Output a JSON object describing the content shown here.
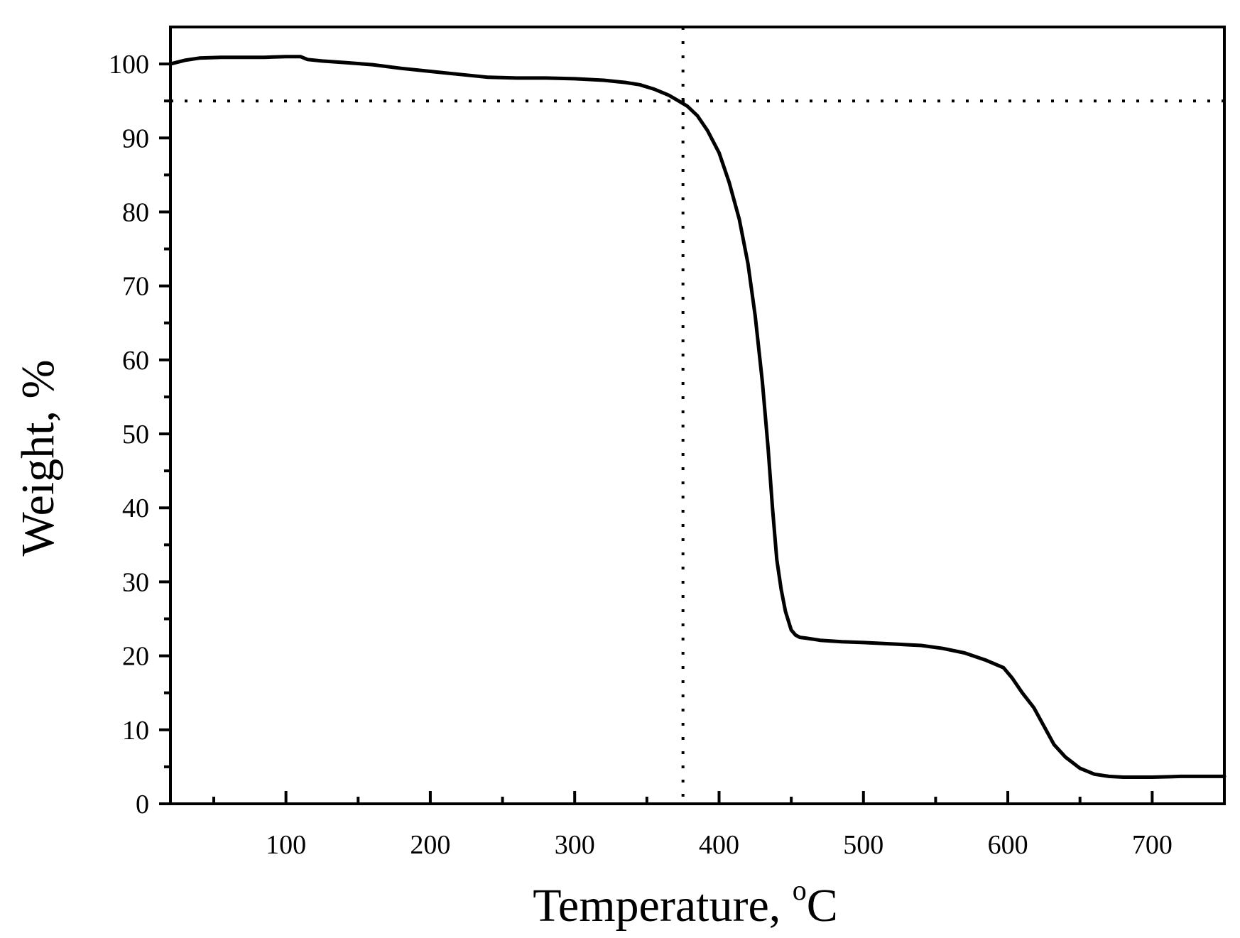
{
  "chart_data": {
    "type": "line",
    "title": "",
    "xlabel_main": "Temperature, ",
    "xlabel_sup": "o",
    "xlabel_unit": "C",
    "ylabel": "Weight, %",
    "xlim": [
      20,
      750
    ],
    "ylim": [
      0,
      105
    ],
    "x_ticks": [
      100,
      200,
      300,
      400,
      500,
      600,
      700
    ],
    "x_minor_ticks": [
      50,
      150,
      250,
      350,
      450,
      550,
      650,
      750
    ],
    "y_ticks": [
      0,
      10,
      20,
      30,
      40,
      50,
      60,
      70,
      80,
      90,
      100
    ],
    "y_minor_ticks": [
      5,
      15,
      25,
      35,
      45,
      55,
      65,
      75,
      85,
      95
    ],
    "grid": false,
    "legend": "none",
    "line_color": "#000000",
    "reference_lines": [
      {
        "orientation": "vertical",
        "x": 375,
        "style": "dotted"
      },
      {
        "orientation": "horizontal",
        "y": 95,
        "style": "dotted"
      }
    ],
    "series": [
      {
        "x": [
          20,
          30,
          40,
          55,
          70,
          85,
          100,
          110,
          115,
          125,
          140,
          160,
          180,
          200,
          220,
          240,
          260,
          280,
          300,
          320,
          335,
          345,
          355,
          365,
          372,
          378,
          385,
          392,
          400,
          407,
          414,
          420,
          425,
          430,
          434,
          437,
          440,
          443,
          446,
          450,
          453,
          456,
          460,
          470,
          485,
          500,
          520,
          540,
          555,
          570,
          585,
          597,
          603,
          610,
          618,
          625,
          632,
          640,
          650,
          660,
          670,
          680,
          700,
          720,
          750
        ],
        "y": [
          100.0,
          100.5,
          100.8,
          100.9,
          100.9,
          100.9,
          101.0,
          101.0,
          100.6,
          100.4,
          100.2,
          99.9,
          99.4,
          99.0,
          98.6,
          98.2,
          98.1,
          98.1,
          98.0,
          97.8,
          97.5,
          97.2,
          96.6,
          95.8,
          95.0,
          94.3,
          93.0,
          91.0,
          88.0,
          84.0,
          79.0,
          73.0,
          66.0,
          57.0,
          48.0,
          40.0,
          33.0,
          29.0,
          26.0,
          23.5,
          22.8,
          22.5,
          22.4,
          22.1,
          21.9,
          21.8,
          21.6,
          21.4,
          21.0,
          20.4,
          19.4,
          18.4,
          17.0,
          15.0,
          13.0,
          10.5,
          8.0,
          6.3,
          4.8,
          4.0,
          3.7,
          3.6,
          3.6,
          3.7,
          3.7
        ]
      }
    ]
  }
}
